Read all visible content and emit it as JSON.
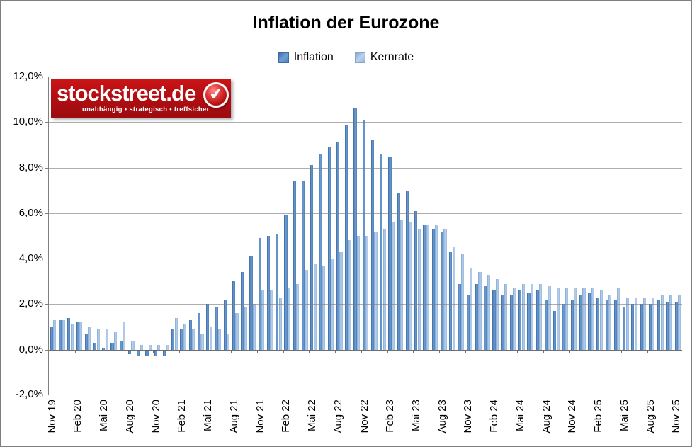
{
  "title": "Inflation der Eurozone",
  "legend": [
    {
      "label": "Inflation",
      "color": "#4f81bd"
    },
    {
      "label": "Kernrate",
      "color": "#95b3d7"
    }
  ],
  "logo": {
    "name": "stockstreet.de",
    "tagline": "unabhängig • strategisch • treffsicher",
    "background_color": "#b30e12"
  },
  "icons": {
    "check": "✔"
  },
  "chart_data": {
    "type": "bar",
    "title": "Inflation der Eurozone",
    "xlabel": "",
    "ylabel": "",
    "ylim": [
      -2,
      12
    ],
    "ytick_step": 2,
    "grid": true,
    "legend_position": "top",
    "ytick_labels": [
      "12,0%",
      "10,0%",
      "8,0%",
      "6,0%",
      "4,0%",
      "2,0%",
      "0,0%",
      "-2,0%"
    ],
    "x_tick_labels": [
      "Nov 19",
      "Feb 20",
      "Mai 20",
      "Aug 20",
      "Nov 20",
      "Feb 21",
      "Mai 21",
      "Aug 21",
      "Nov 21",
      "Feb 22",
      "Mai 22",
      "Aug 22",
      "Nov 22",
      "Feb 23",
      "Mai 23",
      "Aug 23",
      "Nov 23",
      "Feb 24",
      "Mai 24",
      "Aug 24",
      "Nov 24",
      "Feb 25",
      "Mai 25",
      "Aug 25",
      "Nov 25"
    ],
    "categories": [
      "Nov 19",
      "Dez 19",
      "Jan 20",
      "Feb 20",
      "Mär 20",
      "Apr 20",
      "Mai 20",
      "Jun 20",
      "Jul 20",
      "Aug 20",
      "Sep 20",
      "Okt 20",
      "Nov 20",
      "Dez 20",
      "Jan 21",
      "Feb 21",
      "Mär 21",
      "Apr 21",
      "Mai 21",
      "Jun 21",
      "Jul 21",
      "Aug 21",
      "Sep 21",
      "Okt 21",
      "Nov 21",
      "Dez 21",
      "Jan 22",
      "Feb 22",
      "Mär 22",
      "Apr 22",
      "Mai 22",
      "Jun 22",
      "Jul 22",
      "Aug 22",
      "Sep 22",
      "Okt 22",
      "Nov 22",
      "Dez 22",
      "Jan 23",
      "Feb 23",
      "Mär 23",
      "Apr 23",
      "Mai 23",
      "Jun 23",
      "Jul 23",
      "Aug 23",
      "Sep 23",
      "Okt 23",
      "Nov 23",
      "Dez 23",
      "Jan 24",
      "Feb 24",
      "Mär 24",
      "Apr 24",
      "Mai 24",
      "Jun 24",
      "Jul 24",
      "Aug 24",
      "Sep 24",
      "Okt 24",
      "Nov 24",
      "Dez 24",
      "Jan 25",
      "Feb 25",
      "Mär 25",
      "Apr 25",
      "Mai 25",
      "Jun 25",
      "Jul 25",
      "Aug 25",
      "Sep 25",
      "Okt 25",
      "Nov 25"
    ],
    "series": [
      {
        "name": "Inflation",
        "color": "#4f81bd",
        "values": [
          1.0,
          1.3,
          1.4,
          1.2,
          0.7,
          0.3,
          0.1,
          0.3,
          0.4,
          -0.2,
          -0.3,
          -0.3,
          -0.3,
          -0.3,
          0.9,
          0.9,
          1.3,
          1.6,
          2.0,
          1.9,
          2.2,
          3.0,
          3.4,
          4.1,
          4.9,
          5.0,
          5.1,
          5.9,
          7.4,
          7.4,
          8.1,
          8.6,
          8.9,
          9.1,
          9.9,
          10.6,
          10.1,
          9.2,
          8.6,
          8.5,
          6.9,
          7.0,
          6.1,
          5.5,
          5.3,
          5.2,
          4.3,
          2.9,
          2.4,
          2.9,
          2.8,
          2.6,
          2.4,
          2.4,
          2.6,
          2.5,
          2.6,
          2.2,
          1.7,
          2.0,
          2.2,
          2.4,
          2.5,
          2.3,
          2.2,
          2.2,
          1.9,
          2.0,
          2.0,
          2.0,
          2.2,
          2.1,
          2.1
        ]
      },
      {
        "name": "Kernrate",
        "color": "#95b3d7",
        "values": [
          1.3,
          1.3,
          1.1,
          1.2,
          1.0,
          0.9,
          0.9,
          0.8,
          1.2,
          0.4,
          0.2,
          0.2,
          0.2,
          0.2,
          1.4,
          1.1,
          0.9,
          0.7,
          1.0,
          0.9,
          0.7,
          1.6,
          1.9,
          2.0,
          2.6,
          2.6,
          2.3,
          2.7,
          2.9,
          3.5,
          3.8,
          3.7,
          4.0,
          4.3,
          4.8,
          5.0,
          5.0,
          5.2,
          5.3,
          5.6,
          5.7,
          5.6,
          5.3,
          5.5,
          5.5,
          5.3,
          4.5,
          4.2,
          3.6,
          3.4,
          3.3,
          3.1,
          2.9,
          2.7,
          2.9,
          2.9,
          2.9,
          2.8,
          2.7,
          2.7,
          2.7,
          2.7,
          2.7,
          2.6,
          2.4,
          2.7,
          2.3,
          2.3,
          2.3,
          2.3,
          2.4,
          2.4,
          2.4
        ]
      }
    ]
  }
}
